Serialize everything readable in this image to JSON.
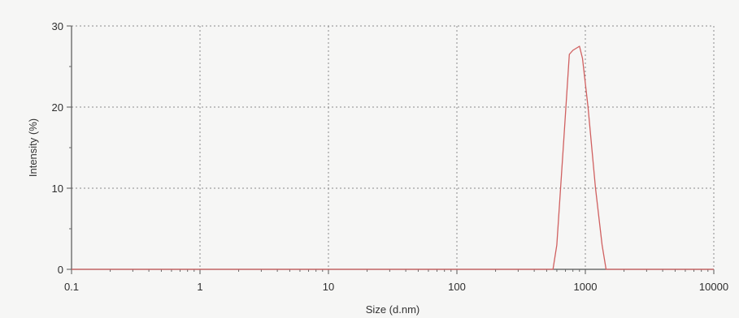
{
  "chart_data": {
    "type": "line",
    "title": "",
    "xlabel": "Size (d.nm)",
    "ylabel": "Intensity (%)",
    "x_scale": "log",
    "xlim": [
      0.1,
      10000
    ],
    "ylim": [
      0,
      30
    ],
    "x_ticks": [
      {
        "value": 0.1,
        "label": "0.1"
      },
      {
        "value": 1,
        "label": "1"
      },
      {
        "value": 10,
        "label": "10"
      },
      {
        "value": 100,
        "label": "100"
      },
      {
        "value": 1000,
        "label": "1000"
      },
      {
        "value": 10000,
        "label": "10000"
      }
    ],
    "y_ticks": [
      {
        "value": 0,
        "label": "0"
      },
      {
        "value": 10,
        "label": "10"
      },
      {
        "value": 20,
        "label": "20"
      },
      {
        "value": 30,
        "label": "30"
      }
    ],
    "grid": true,
    "legend": "none",
    "series": [
      {
        "color": "#d06060",
        "x": [
          0.1,
          1,
          10,
          100,
          480,
          560,
          600,
          680,
          750,
          800,
          900,
          950,
          1050,
          1200,
          1350,
          1450,
          1550,
          10000
        ],
        "y": [
          0,
          0,
          0,
          0,
          0,
          0,
          3,
          16,
          26.5,
          27,
          27.5,
          26,
          20,
          10,
          3,
          0,
          0,
          0
        ]
      }
    ]
  }
}
